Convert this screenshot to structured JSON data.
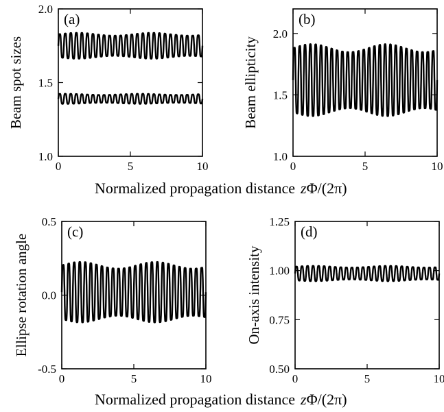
{
  "figure": {
    "xlabel_row1": {
      "text": "Normalized propagation distance",
      "math_var": "z",
      "math_rest": "Φ/(2π)"
    },
    "xlabel_row2": {
      "text": "Normalized propagation distance",
      "math_var": "z",
      "math_rest": "Φ/(2π)"
    }
  },
  "chart_data": [
    {
      "type": "line",
      "panel_label": "(a)",
      "ylabel": "Beam spot sizes",
      "xlim": [
        0,
        10
      ],
      "ylim": [
        1.0,
        2.0
      ],
      "xticks": [
        "0",
        "5",
        "10"
      ],
      "yticks": [
        "1.0",
        "1.5",
        "2.0"
      ],
      "series": [
        {
          "mean": 1.75,
          "amplitude": 0.09,
          "oscillations": 26
        },
        {
          "mean": 1.39,
          "amplitude": 0.035,
          "oscillations": 26
        }
      ]
    },
    {
      "type": "line",
      "panel_label": "(b)",
      "ylabel": "Beam ellipticity",
      "xlim": [
        0,
        10
      ],
      "ylim": [
        1.0,
        2.2
      ],
      "xticks": [
        "0",
        "5",
        "10"
      ],
      "yticks": [
        "1.0",
        "1.5",
        "2.0"
      ],
      "series": [
        {
          "mean": 1.62,
          "amplitude": 0.3,
          "oscillations": 27
        }
      ]
    },
    {
      "type": "line",
      "panel_label": "(c)",
      "ylabel": "Ellipse rotation angle",
      "xlim": [
        0,
        10
      ],
      "ylim": [
        -0.5,
        0.5
      ],
      "xticks": [
        "0",
        "5",
        "10"
      ],
      "yticks": [
        "0.5",
        "0.0",
        "-0.5"
      ],
      "series": [
        {
          "mean": 0.02,
          "amplitude": 0.21,
          "oscillations": 26
        }
      ]
    },
    {
      "type": "line",
      "panel_label": "(d)",
      "ylabel": "On-axis intensity",
      "xlim": [
        0,
        10
      ],
      "ylim": [
        0.5,
        1.25
      ],
      "xticks": [
        "0",
        "5",
        "10"
      ],
      "yticks": [
        "1.25",
        "1.00",
        "0.75",
        "0.50"
      ],
      "series": [
        {
          "mean": 0.985,
          "amplitude": 0.04,
          "oscillations": 26
        }
      ]
    }
  ]
}
